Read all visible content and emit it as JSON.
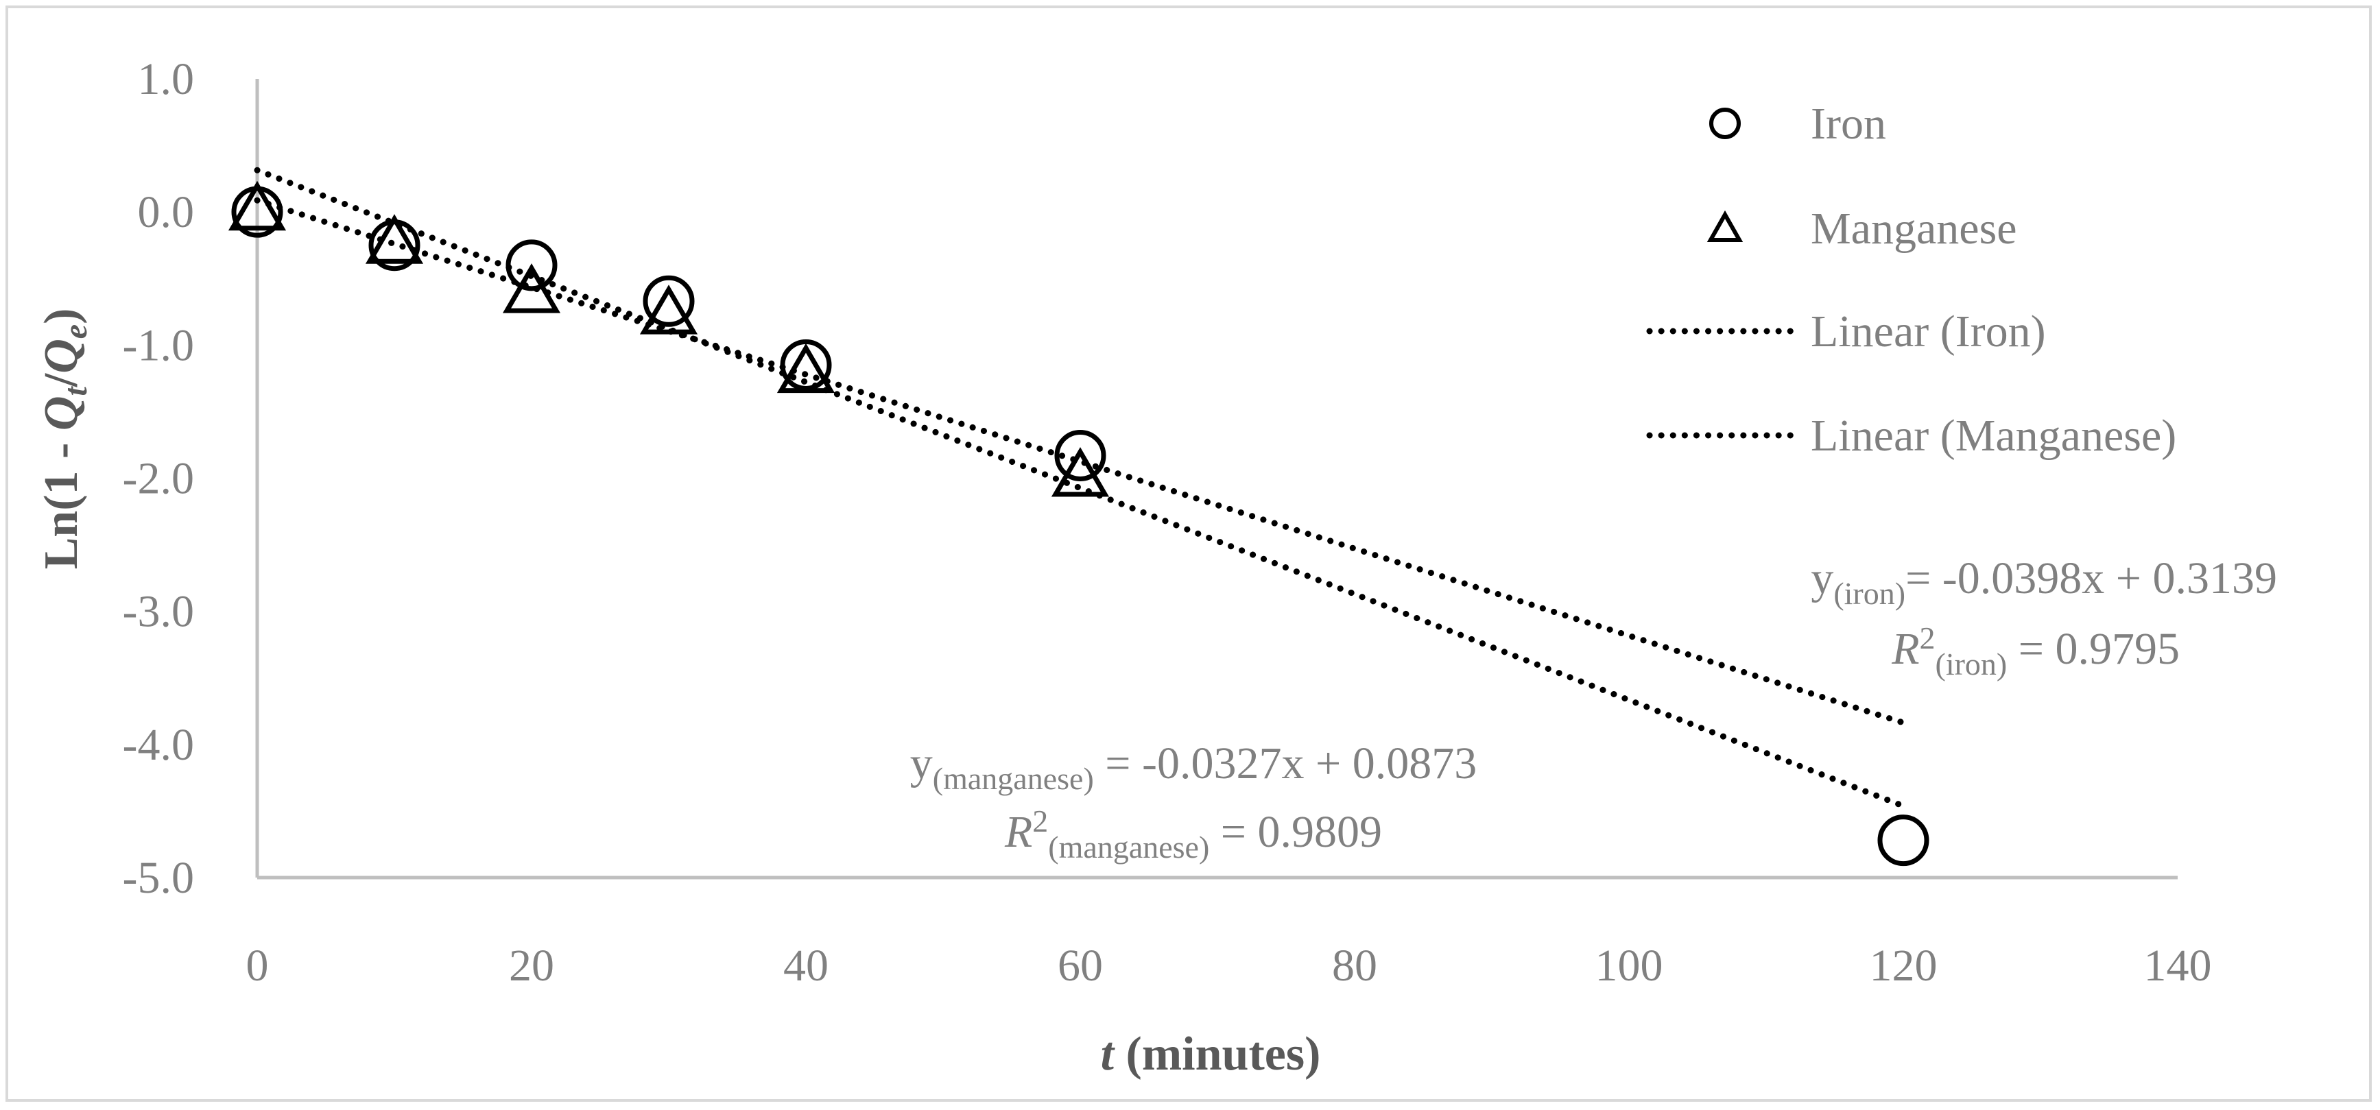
{
  "chart_data": {
    "type": "scatter",
    "xlabel": {
      "italic": "t",
      "rest": " (minutes)"
    },
    "ylabel": {
      "pre": "Ln(1 - ",
      "q1": "Q",
      "s1": "t",
      "slash": "/",
      "q2": "Q",
      "s2": "e",
      "post": ")"
    },
    "xlim": [
      0,
      140
    ],
    "ylim": [
      -5.0,
      1.0
    ],
    "xticks": [
      "0",
      "20",
      "40",
      "60",
      "80",
      "100",
      "120",
      "140"
    ],
    "xtick_values": [
      0,
      20,
      40,
      60,
      80,
      100,
      120,
      140
    ],
    "yticks": [
      "1.0",
      "0.0",
      "-1.0",
      "-2.0",
      "-3.0",
      "-4.0",
      "-5.0"
    ],
    "ytick_values": [
      1,
      0,
      -1,
      -2,
      -3,
      -4,
      -5
    ],
    "series": [
      {
        "name": "Iron",
        "marker": "circle",
        "x": [
          0,
          10,
          20,
          30,
          40,
          60,
          120
        ],
        "y": [
          0.0,
          -0.25,
          -0.4,
          -0.67,
          -1.15,
          -1.83,
          -4.72
        ]
      },
      {
        "name": "Manganese",
        "marker": "triangle",
        "x": [
          0,
          10,
          20,
          30,
          40,
          60
        ],
        "y": [
          0.0,
          -0.25,
          -0.62,
          -0.78,
          -1.22,
          -2.0
        ]
      }
    ],
    "trendlines": [
      {
        "name": "Linear (Iron)",
        "slope": -0.0398,
        "intercept": 0.3139,
        "x_range": [
          0,
          120
        ]
      },
      {
        "name": "Linear (Manganese)",
        "slope": -0.0327,
        "intercept": 0.0873,
        "x_range": [
          0,
          120
        ]
      }
    ],
    "legend": {
      "position": "top-right",
      "entries": [
        "Iron",
        "Manganese",
        "Linear (Iron)",
        "Linear (Manganese)"
      ]
    },
    "annotations": {
      "iron_eq": {
        "y": "y",
        "sub": "(iron)",
        "rest": "= -0.0398x + 0.3139"
      },
      "iron_r2": {
        "r": "R",
        "sup": "2",
        "sub": "(iron)",
        "rest": " = 0.9795"
      },
      "mn_eq": {
        "y": "y",
        "sub": "(manganese)",
        "rest": " = -0.0327x + 0.0873"
      },
      "mn_r2": {
        "r": "R",
        "sup": "2",
        "sub": "(manganese)",
        "rest": " = 0.9809"
      }
    }
  },
  "colors": {
    "axis": "#bfbfbf",
    "tick_text": "#808080",
    "marker": "#000000",
    "frame": "#d9d9d9"
  }
}
